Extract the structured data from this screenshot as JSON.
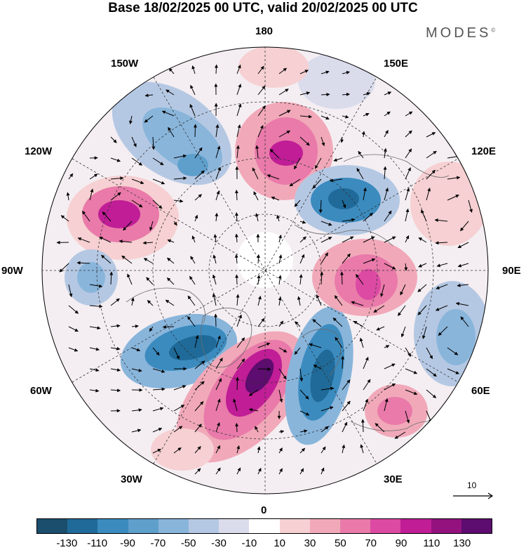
{
  "title": "Base 18/02/2025 00 UTC, valid 20/02/2025 00 UTC",
  "brand": "MODES",
  "brand_mark": "©",
  "longitude_labels": {
    "n180": "180",
    "e150": "150E",
    "e120": "120E",
    "e90": "90E",
    "e60": "60E",
    "e30": "30E",
    "s0": "0",
    "w30": "30W",
    "w60": "60W",
    "w90": "90W",
    "w120": "120W",
    "w150": "150W"
  },
  "reference_vector": "10",
  "colorbar": {
    "colors": [
      "#1b4d6d",
      "#1f6a98",
      "#3b8bbf",
      "#5f9fcc",
      "#89b5db",
      "#b5c8e3",
      "#dadcec",
      "#ffffff",
      "#f6d0d2",
      "#f1a9b9",
      "#e97aa9",
      "#dc4aa3",
      "#c01d96",
      "#93127e",
      "#5d0c6f"
    ],
    "ticks": [
      "-130",
      "-110",
      "-90",
      "-70",
      "-50",
      "-30",
      "-10",
      "10",
      "30",
      "50",
      "70",
      "90",
      "110",
      "130"
    ]
  },
  "anomalies": [
    {
      "name": "north-pacific-positive",
      "value": 95
    },
    {
      "name": "alaska-negative",
      "value": -55
    },
    {
      "name": "canada-positive",
      "value": 100
    },
    {
      "name": "hudson-negative",
      "value": -35
    },
    {
      "name": "greenland-negative",
      "value": -85
    },
    {
      "name": "north-atlantic-positive",
      "value": 130
    },
    {
      "name": "scandinavia-negative",
      "value": -95
    },
    {
      "name": "siberia-negative",
      "value": -80
    },
    {
      "name": "urals-positive",
      "value": 80
    },
    {
      "name": "central-asia-negative",
      "value": -40
    },
    {
      "name": "east-siberia-positive",
      "value": 35
    },
    {
      "name": "mediterranean-positive",
      "value": 65
    }
  ]
}
